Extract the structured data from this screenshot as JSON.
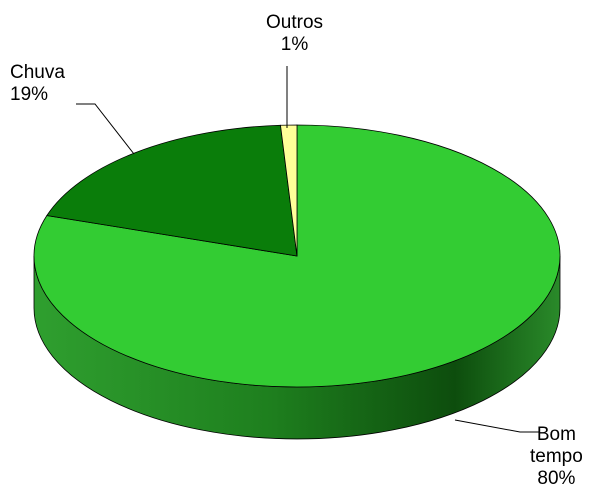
{
  "chart_data": {
    "type": "pie",
    "style": "3d",
    "slices": [
      {
        "label": "Bom tempo",
        "line1": "Bom",
        "line2": "tempo",
        "value": 80,
        "value_label": "80%",
        "color": "#33cc33",
        "side_color": "#1f9a1f",
        "side_dark": "#0f5a0f"
      },
      {
        "label": "Chuva",
        "line1": "Chuva",
        "line2": "",
        "value": 19,
        "value_label": "19%",
        "color": "#0a7d0a",
        "side_color": "#085f08",
        "side_dark": "#053a05"
      },
      {
        "label": "Outros",
        "line1": "Outros",
        "line2": "",
        "value": 1,
        "value_label": "1%",
        "color": "#ffff99",
        "side_color": "#d8d870",
        "side_dark": "#a0a040"
      }
    ],
    "start_angle_deg": 0,
    "direction": "clockwise",
    "legend": "none"
  }
}
